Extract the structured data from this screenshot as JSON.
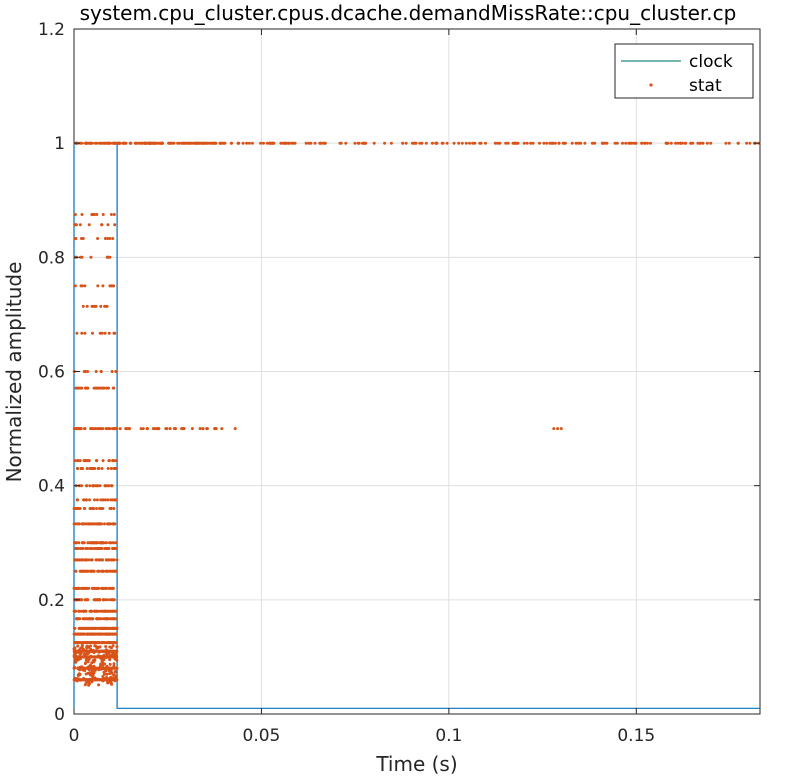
{
  "chart_data": {
    "type": "line",
    "title": "system.cpu_cluster.cpus.dcache.demandMissRate::cpu_cluster.cp",
    "xlabel": "Time (s)",
    "ylabel": "Normalized amplitude",
    "xlim": [
      0,
      0.183
    ],
    "ylim": [
      0,
      1.2
    ],
    "xticks": [
      0,
      0.05,
      0.1,
      0.15
    ],
    "xtick_labels": [
      "0",
      "0.05",
      "0.1",
      "0.15"
    ],
    "yticks": [
      0,
      0.2,
      0.4,
      0.6,
      0.8,
      1.0,
      1.2
    ],
    "ytick_labels": [
      "0",
      "0.2",
      "0.4",
      "0.6",
      "0.8",
      "1",
      "1.2"
    ],
    "grid": true,
    "legend_position": "top-right",
    "legend": [
      "clock",
      "stat"
    ],
    "colors": {
      "clock": "#0072bd",
      "clock_legend": "#1f8a7a",
      "stat": "#d95319"
    },
    "series": [
      {
        "name": "clock",
        "style": "line",
        "x": [
          0,
          0,
          0.0115,
          0.0115,
          0.183
        ],
        "y": [
          0.01,
          1.0,
          1.0,
          0.01,
          0.01
        ]
      },
      {
        "name": "stat",
        "style": "points",
        "note_levels_early": [
          0.06,
          0.08,
          0.1,
          0.11,
          0.125,
          0.14,
          0.15,
          0.167,
          0.18,
          0.2,
          0.22,
          0.25,
          0.27,
          0.29,
          0.3,
          0.333,
          0.36,
          0.375,
          0.4,
          0.43,
          0.444,
          0.5,
          0.571,
          0.6,
          0.667,
          0.714,
          0.75,
          0.8,
          0.833,
          0.857,
          0.875,
          1.0
        ],
        "early_x_range": [
          0,
          0.0115
        ],
        "level_half_x_range": [
          0,
          0.04
        ],
        "level_half_outliers_x": [
          0.043,
          0.128,
          0.129,
          0.13
        ],
        "level_one_x_range": [
          0,
          0.183
        ]
      }
    ]
  }
}
